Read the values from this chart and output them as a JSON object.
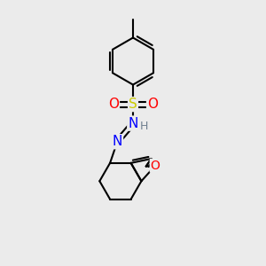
{
  "bg_color": "#ebebeb",
  "bond_color": "#000000",
  "bond_width": 1.5,
  "atom_colors": {
    "O": "#ff0000",
    "N": "#0000ff",
    "S": "#cccc00",
    "H": "#708090"
  },
  "font_size": 10,
  "fig_size": [
    3.0,
    3.0
  ],
  "dpi": 100
}
